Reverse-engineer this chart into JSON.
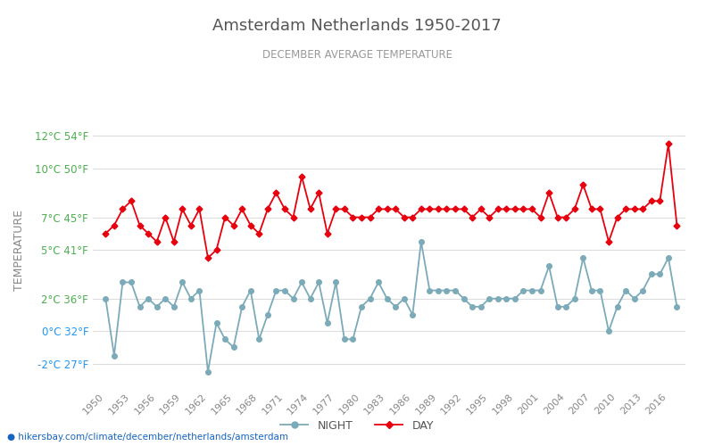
{
  "title": "Amsterdam Netherlands 1950-2017",
  "subtitle": "DECEMBER AVERAGE TEMPERATURE",
  "ylabel": "TEMPERATURE",
  "xlabel_url": "hikersbay.com/climate/december/netherlands/amsterdam",
  "years": [
    1950,
    1951,
    1952,
    1953,
    1954,
    1955,
    1956,
    1957,
    1958,
    1959,
    1960,
    1961,
    1962,
    1963,
    1964,
    1965,
    1966,
    1967,
    1968,
    1969,
    1970,
    1971,
    1972,
    1973,
    1974,
    1975,
    1976,
    1977,
    1978,
    1979,
    1980,
    1981,
    1982,
    1983,
    1984,
    1985,
    1986,
    1987,
    1988,
    1989,
    1990,
    1991,
    1992,
    1993,
    1994,
    1995,
    1996,
    1997,
    1998,
    1999,
    2000,
    2001,
    2002,
    2003,
    2004,
    2005,
    2006,
    2007,
    2008,
    2009,
    2010,
    2011,
    2012,
    2013,
    2014,
    2015,
    2016,
    2017
  ],
  "day_temps": [
    6.0,
    6.5,
    7.5,
    8.0,
    6.5,
    6.0,
    5.5,
    7.0,
    5.5,
    7.5,
    6.5,
    7.5,
    4.5,
    5.0,
    7.0,
    6.5,
    7.5,
    6.5,
    6.0,
    7.5,
    8.5,
    7.5,
    7.0,
    9.5,
    7.5,
    8.5,
    6.0,
    7.5,
    7.5,
    7.0,
    7.0,
    7.0,
    7.5,
    7.5,
    7.5,
    7.0,
    7.0,
    7.5,
    7.5,
    7.5,
    7.5,
    7.5,
    7.5,
    7.0,
    7.5,
    7.0,
    7.5,
    7.5,
    7.5,
    7.5,
    7.5,
    7.0,
    8.5,
    7.0,
    7.0,
    7.5,
    9.0,
    7.5,
    7.5,
    5.5,
    7.0,
    7.5,
    7.5,
    7.5,
    8.0,
    8.0,
    11.5,
    6.5
  ],
  "night_temps": [
    2.0,
    -1.5,
    3.0,
    3.0,
    1.5,
    2.0,
    1.5,
    2.0,
    1.5,
    3.0,
    2.0,
    2.5,
    -2.5,
    0.5,
    -0.5,
    -1.0,
    1.5,
    2.5,
    -0.5,
    1.0,
    2.5,
    2.5,
    2.0,
    3.0,
    2.0,
    3.0,
    0.5,
    3.0,
    -0.5,
    -0.5,
    1.5,
    2.0,
    3.0,
    2.0,
    1.5,
    2.0,
    1.0,
    5.5,
    2.5,
    2.5,
    2.5,
    2.5,
    2.0,
    1.5,
    1.5,
    2.0,
    2.0,
    2.0,
    2.0,
    2.5,
    2.5,
    2.5,
    4.0,
    1.5,
    1.5,
    2.0,
    4.5,
    2.5,
    2.5,
    0.0,
    1.5,
    2.5,
    2.0,
    2.5,
    3.5,
    3.5,
    4.5,
    1.5
  ],
  "yticks_c": [
    -2,
    0,
    2,
    5,
    7,
    10,
    12
  ],
  "yticks_f": [
    27,
    32,
    36,
    41,
    45,
    50,
    54
  ],
  "ylim": [
    -3.5,
    13.5
  ],
  "xlim": [
    1948.5,
    2018.0
  ],
  "xtick_years": [
    1950,
    1953,
    1956,
    1959,
    1962,
    1965,
    1968,
    1971,
    1974,
    1977,
    1980,
    1983,
    1986,
    1989,
    1992,
    1995,
    1998,
    2001,
    2004,
    2007,
    2010,
    2013,
    2016
  ],
  "day_color": "#e8000d",
  "night_color": "#7baab8",
  "title_color": "#555555",
  "subtitle_color": "#999999",
  "ylabel_color": "#888888",
  "ytick_color_green": "#4caf50",
  "ytick_color_blue": "#2196f3",
  "grid_color": "#dddddd",
  "background_color": "#ffffff",
  "url_color": "#1565c0",
  "legend_night": "NIGHT",
  "legend_day": "DAY"
}
